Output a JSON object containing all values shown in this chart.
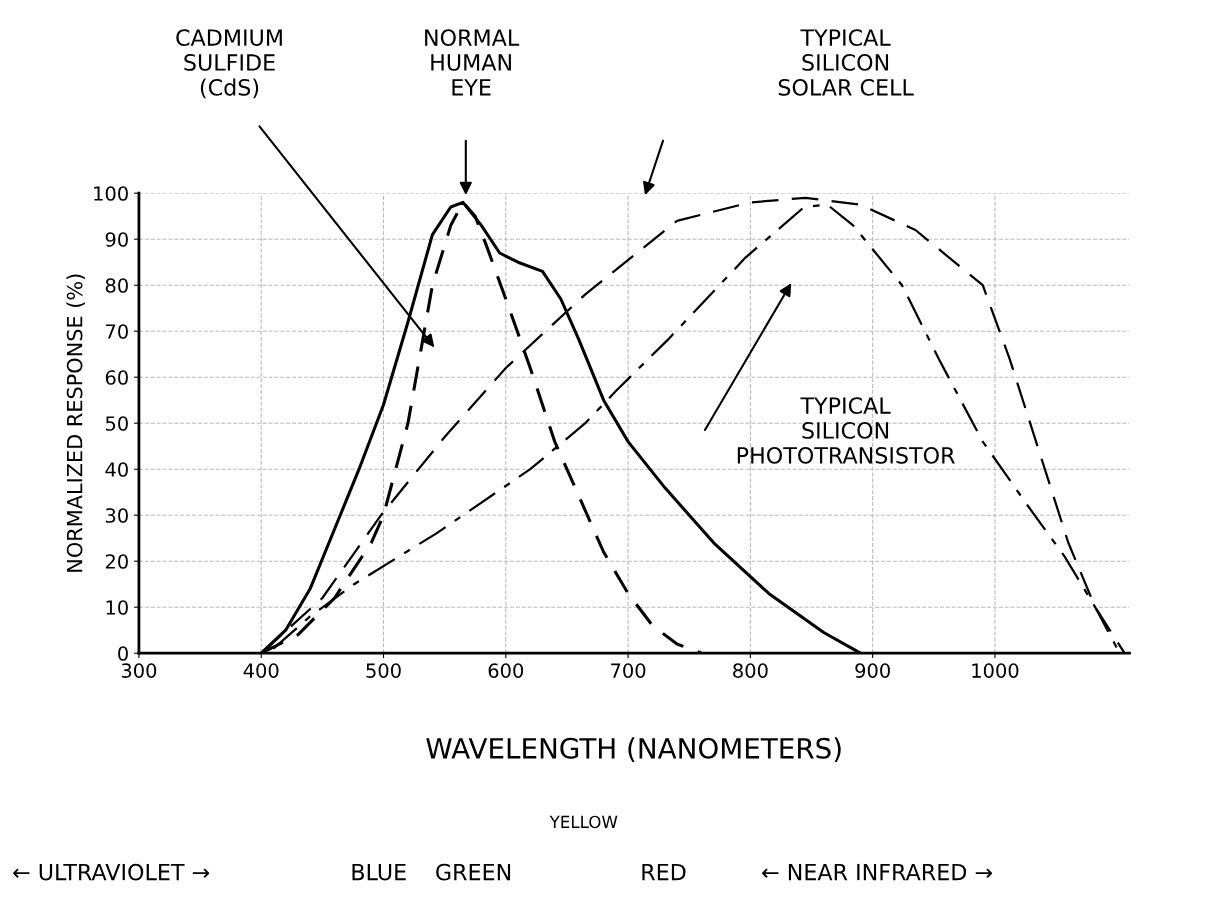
{
  "chart_data": {
    "type": "line",
    "xlabel": "WAVELENGTH (NANOMETERS)",
    "ylabel": "NORMALIZED RESPONSE (%)",
    "xlim": [
      300,
      1110
    ],
    "ylim": [
      0,
      100
    ],
    "xticks": [
      300,
      400,
      500,
      600,
      700,
      800,
      900,
      1000
    ],
    "yticks": [
      0,
      10,
      20,
      30,
      40,
      50,
      60,
      70,
      80,
      90,
      100
    ],
    "grid": true,
    "marker": "none",
    "series": [
      {
        "color": "#000000",
        "line_style": "solid",
        "x": [
          400,
          420,
          440,
          460,
          480,
          500,
          520,
          540,
          555,
          565,
          580,
          595,
          610,
          630,
          645,
          660,
          680,
          700,
          730,
          770,
          815,
          860,
          890
        ],
        "values": [
          0,
          5,
          14,
          27,
          40,
          54,
          72,
          91,
          97,
          98,
          93,
          87,
          85,
          83,
          77,
          68,
          55,
          46,
          36,
          24,
          13,
          4.5,
          0
        ]
      },
      {
        "color": "#000000",
        "line_style": "dashed",
        "x": [
          400,
          430,
          460,
          490,
          500,
          520,
          540,
          555,
          565,
          575,
          585,
          600,
          620,
          640,
          660,
          680,
          700,
          720,
          740,
          760
        ],
        "values": [
          0,
          4,
          12,
          24,
          30,
          50,
          80,
          93,
          98,
          95,
          88,
          77,
          62,
          46,
          34,
          22,
          13,
          6,
          2,
          0
        ]
      },
      {
        "color": "#000000",
        "line_style": "dashed",
        "x": [
          400,
          450,
          498,
          550,
          600,
          665,
          740,
          800,
          845,
          890,
          935,
          990,
          1012,
          1036,
          1060,
          1082,
          1106
        ],
        "values": [
          0,
          12,
          30,
          47,
          62,
          78,
          94,
          98,
          99,
          97.5,
          92,
          80,
          64,
          44,
          24,
          10,
          0
        ]
      },
      {
        "color": "#000000",
        "line_style": "dashed",
        "x": [
          410,
          440,
          476,
          543,
          620,
          665,
          690,
          732,
          796,
          844,
          863,
          884,
          924,
          954,
          990,
          1027,
          1057,
          1082,
          1100
        ],
        "values": [
          1,
          8,
          15,
          26,
          40,
          50,
          57,
          68,
          86,
          97,
          97.5,
          93,
          80,
          64,
          46,
          32,
          21,
          10,
          1
        ]
      }
    ],
    "annotations": [
      "CADMIUM\nSULFIDE\n(CdS)",
      "NORMAL\nHUMAN\nEYE",
      "TYPICAL\nSILICON\nSOLAR CELL",
      "TYPICAL\nSILICON\nPHOTOTRANSISTOR",
      "← ULTRAVIOLET →",
      "BLUE",
      "GREEN",
      "YELLOW",
      "RED",
      "← NEAR INFRARED →"
    ]
  }
}
